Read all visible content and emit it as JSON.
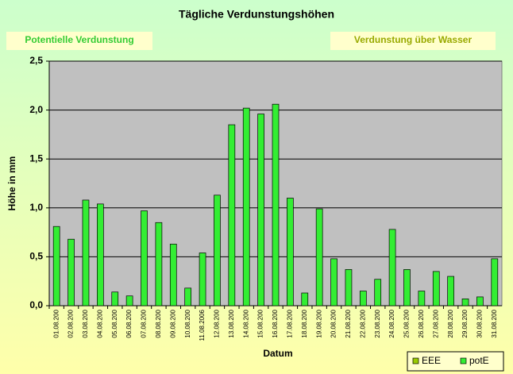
{
  "chart_data": {
    "type": "bar",
    "title": "Tägliche Verdunstungshöhen",
    "annotations": [
      "Potentielle Verdunstung",
      "Verdunstung über Wasser"
    ],
    "x_label": "Datum",
    "y_label": "Höhe in mm",
    "categories": [
      "01.08.200",
      "02.08.200",
      "03.08.200",
      "04.08.200",
      "05.08.200",
      "06.08.200",
      "07.08.200",
      "08.08.200",
      "09.08.200",
      "10.08.200",
      "11.08.2006",
      "12.08.200",
      "13.08.200",
      "14.08.200",
      "15.08.200",
      "16.08.200",
      "17.08.200",
      "18.08.200",
      "19.08.200",
      "20.08.200",
      "21.08.200",
      "22.08.200",
      "23.08.200",
      "24.08.200",
      "25.08.200",
      "26.08.200",
      "27.08.200",
      "28.08.200",
      "29.08.200",
      "30.08.200",
      "31.08.200"
    ],
    "series": [
      {
        "name": "EEE",
        "color": "#99cc00",
        "values": [
          null,
          null,
          null,
          null,
          null,
          null,
          null,
          null,
          null,
          null,
          null,
          null,
          null,
          null,
          null,
          null,
          null,
          null,
          null,
          null,
          null,
          null,
          null,
          null,
          null,
          null,
          null,
          null,
          null,
          null,
          null
        ]
      },
      {
        "name": "potE",
        "color": "#33ee33",
        "values": [
          0.81,
          0.68,
          1.08,
          1.04,
          0.14,
          0.1,
          0.97,
          0.85,
          0.63,
          0.18,
          0.54,
          1.13,
          1.85,
          2.02,
          1.96,
          2.06,
          1.1,
          0.13,
          0.99,
          0.48,
          0.37,
          0.15,
          0.27,
          0.78,
          0.37,
          0.15,
          0.35,
          0.3,
          0.07,
          0.09,
          0.48
        ]
      }
    ],
    "ylim": [
      0,
      2.5
    ],
    "yticks": [
      {
        "value": 0,
        "label": "0,0"
      },
      {
        "value": 0.5,
        "label": "0,5"
      },
      {
        "value": 1,
        "label": "1,0"
      },
      {
        "value": 1.5,
        "label": "1,5"
      },
      {
        "value": 2,
        "label": "2,0"
      },
      {
        "value": 2.5,
        "label": "2,5"
      }
    ],
    "grid": true,
    "legend": "bottom-right"
  }
}
